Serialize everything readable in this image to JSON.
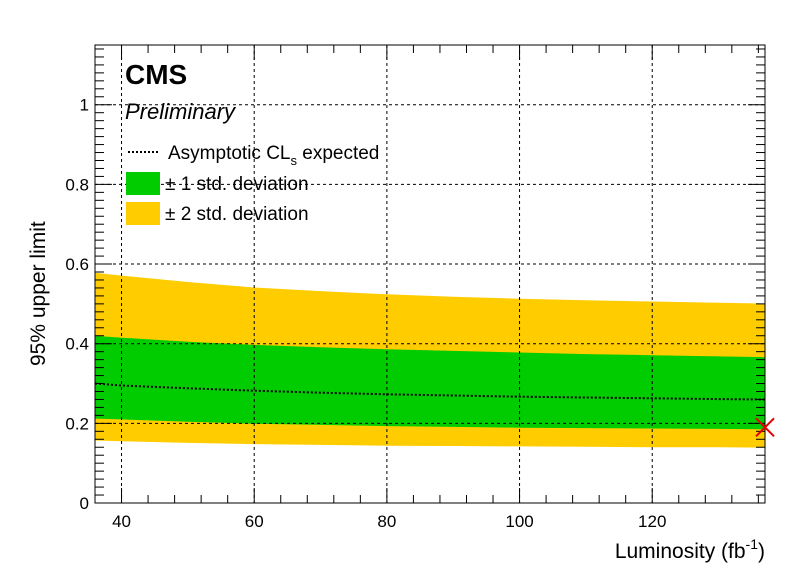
{
  "chart_data": {
    "type": "area",
    "experiment": "CMS",
    "status": "Preliminary",
    "xlabel": "Luminosity (fb",
    "xlabel_superscript": "-1",
    "xlabel_close": ")",
    "ylabel": "95% upper limit",
    "xlim": [
      36,
      137
    ],
    "ylim": [
      0,
      1.15
    ],
    "x_ticks": [
      40,
      60,
      80,
      100,
      120
    ],
    "x_tick_labels": [
      "40",
      "60",
      "80",
      "100",
      "120"
    ],
    "y_ticks": [
      0,
      0.2,
      0.4,
      0.6,
      0.8,
      1
    ],
    "y_tick_labels": [
      "0",
      "0.2",
      "0.4",
      "0.6",
      "0.8",
      "1"
    ],
    "grid": true,
    "legend_position": "top-left",
    "x": [
      36,
      40,
      50,
      60,
      70,
      80,
      90,
      100,
      110,
      120,
      130,
      137
    ],
    "expected": {
      "name": "Asymptotic CL",
      "name_subscript": "s",
      "name_suffix": " expected",
      "values": [
        0.3,
        0.295,
        0.288,
        0.282,
        0.277,
        0.273,
        0.27,
        0.267,
        0.265,
        0.263,
        0.261,
        0.26
      ],
      "color": "#000000",
      "style": "dotted"
    },
    "band_1sigma": {
      "name": "± 1 std. deviation",
      "color": "#00cc00",
      "lower": [
        0.212,
        0.21,
        0.204,
        0.199,
        0.196,
        0.193,
        0.191,
        0.189,
        0.188,
        0.187,
        0.186,
        0.185
      ],
      "upper": [
        0.42,
        0.415,
        0.405,
        0.397,
        0.391,
        0.386,
        0.382,
        0.378,
        0.374,
        0.371,
        0.368,
        0.366
      ]
    },
    "band_2sigma": {
      "name": "± 2 std. deviation",
      "color": "#ffcc00",
      "lower": [
        0.157,
        0.155,
        0.151,
        0.148,
        0.146,
        0.144,
        0.143,
        0.142,
        0.141,
        0.14,
        0.14,
        0.139
      ],
      "upper": [
        0.578,
        0.571,
        0.555,
        0.541,
        0.532,
        0.524,
        0.518,
        0.513,
        0.509,
        0.506,
        0.503,
        0.501
      ]
    },
    "observed_marker": {
      "x": 137,
      "y": 0.19,
      "symbol": "x",
      "color": "#e60000"
    }
  }
}
